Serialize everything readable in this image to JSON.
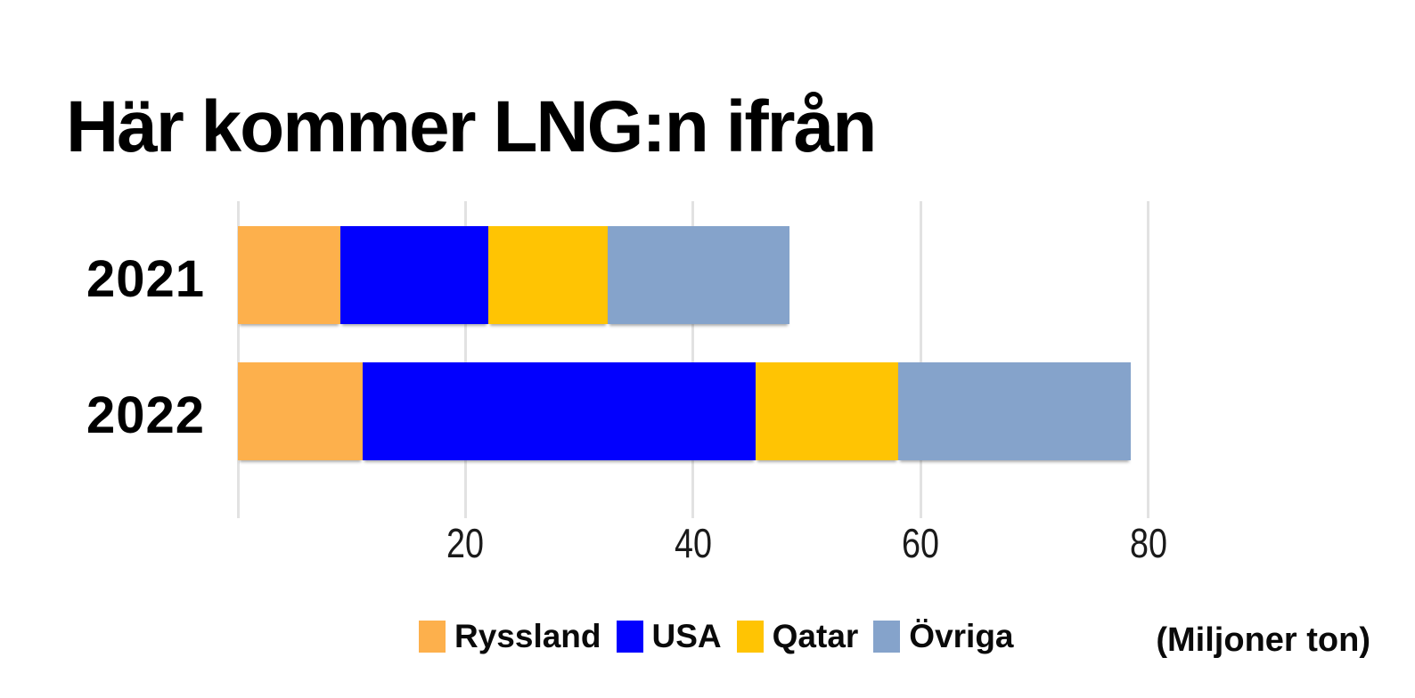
{
  "title": "Här kommer LNG:n ifrån",
  "unit_label": "(Miljoner ton)",
  "chart_data": {
    "type": "bar",
    "orientation": "horizontal",
    "stacked": true,
    "title": "Här kommer LNG:n ifrån",
    "xlabel": "(Miljoner ton)",
    "ylabel": "",
    "categories": [
      "2021",
      "2022"
    ],
    "series": [
      {
        "name": "Ryssland",
        "color": "#FDB04C",
        "values": [
          9,
          11
        ]
      },
      {
        "name": "USA",
        "color": "#0200FE",
        "values": [
          13,
          34.5
        ]
      },
      {
        "name": "Qatar",
        "color": "#FFC403",
        "values": [
          10.5,
          12.5
        ]
      },
      {
        "name": "Övriga",
        "color": "#85A3CB",
        "values": [
          16,
          20.5
        ]
      }
    ],
    "totals": [
      48.5,
      78.5
    ],
    "xlim": [
      0,
      80
    ],
    "x_ticks": [
      20,
      40,
      60,
      80
    ],
    "grid": "vertical",
    "gridline_color": "#e2e2e2",
    "legend_position": "bottom",
    "text_color": "#000000",
    "background_color": "#ffffff"
  }
}
